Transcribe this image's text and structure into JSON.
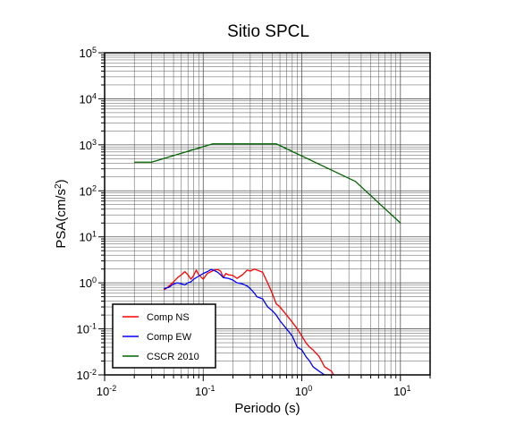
{
  "chart_data": {
    "type": "line",
    "title": "Sitio SPCL",
    "xlabel": "Periodo (s)",
    "ylabel": "PSA(cm/s2)",
    "ylabel_base": "PSA(cm/s",
    "ylabel_sup": "2",
    "ylabel_end": ")",
    "x_scale": "log",
    "y_scale": "log",
    "xlim": [
      0.01,
      20
    ],
    "ylim": [
      0.01,
      100000
    ],
    "grid": true,
    "legend_position": "bottom-left",
    "x_ticks": [
      {
        "base": "10",
        "exp": "-2",
        "value": 0.01
      },
      {
        "base": "10",
        "exp": "-1",
        "value": 0.1
      },
      {
        "base": "10",
        "exp": "0",
        "value": 1
      },
      {
        "base": "10",
        "exp": "1",
        "value": 10
      }
    ],
    "y_ticks": [
      {
        "base": "10",
        "exp": "-2",
        "value": 0.01
      },
      {
        "base": "10",
        "exp": "-1",
        "value": 0.1
      },
      {
        "base": "10",
        "exp": "0",
        "value": 1
      },
      {
        "base": "10",
        "exp": "1",
        "value": 10
      },
      {
        "base": "10",
        "exp": "2",
        "value": 100
      },
      {
        "base": "10",
        "exp": "3",
        "value": 1000
      },
      {
        "base": "10",
        "exp": "4",
        "value": 10000
      },
      {
        "base": "10",
        "exp": "5",
        "value": 100000
      }
    ],
    "series": [
      {
        "name": "Comp NS",
        "color": "#ff0000",
        "x": [
          0.04,
          0.045,
          0.05,
          0.055,
          0.06,
          0.065,
          0.07,
          0.075,
          0.08,
          0.085,
          0.09,
          0.1,
          0.11,
          0.12,
          0.13,
          0.14,
          0.15,
          0.16,
          0.17,
          0.18,
          0.2,
          0.22,
          0.25,
          0.28,
          0.3,
          0.33,
          0.35,
          0.4,
          0.45,
          0.5,
          0.55,
          0.6,
          0.7,
          0.8,
          0.9,
          1.0,
          1.1,
          1.2,
          1.3,
          1.5,
          1.7,
          2.0,
          2.1
        ],
        "y": [
          0.7,
          0.85,
          1.05,
          1.3,
          1.5,
          1.75,
          1.5,
          1.2,
          1.45,
          1.9,
          1.5,
          1.2,
          1.6,
          1.75,
          1.9,
          1.95,
          1.8,
          1.3,
          1.6,
          1.5,
          1.45,
          1.25,
          1.5,
          1.9,
          1.8,
          2.0,
          1.9,
          1.7,
          1.0,
          0.6,
          0.35,
          0.3,
          0.2,
          0.14,
          0.1,
          0.07,
          0.05,
          0.04,
          0.035,
          0.025,
          0.015,
          0.012,
          0.01
        ]
      },
      {
        "name": "Comp EW",
        "color": "#0000ff",
        "x": [
          0.04,
          0.045,
          0.05,
          0.055,
          0.06,
          0.065,
          0.07,
          0.075,
          0.08,
          0.09,
          0.1,
          0.11,
          0.12,
          0.13,
          0.14,
          0.15,
          0.16,
          0.18,
          0.2,
          0.22,
          0.25,
          0.28,
          0.3,
          0.33,
          0.35,
          0.4,
          0.45,
          0.5,
          0.55,
          0.6,
          0.7,
          0.8,
          0.9,
          1.0,
          1.1,
          1.2,
          1.3,
          1.5,
          1.7,
          2.0,
          2.3,
          2.6,
          3.0
        ],
        "y": [
          0.75,
          0.8,
          0.95,
          1.0,
          0.95,
          0.9,
          1.0,
          1.05,
          1.2,
          1.4,
          1.6,
          1.75,
          1.95,
          1.85,
          1.7,
          1.5,
          1.3,
          1.25,
          1.15,
          1.0,
          0.95,
          0.85,
          0.75,
          0.6,
          0.5,
          0.45,
          0.3,
          0.25,
          0.2,
          0.15,
          0.1,
          0.07,
          0.04,
          0.035,
          0.025,
          0.02,
          0.015,
          0.012,
          0.01,
          0.01,
          0.009,
          0.0085,
          0.008
        ]
      },
      {
        "name": "CSCR 2010",
        "color": "#006400",
        "x": [
          0.02,
          0.03,
          0.125,
          0.55,
          3.5,
          10
        ],
        "y": [
          420,
          420,
          1050,
          1050,
          160,
          20
        ]
      }
    ]
  }
}
